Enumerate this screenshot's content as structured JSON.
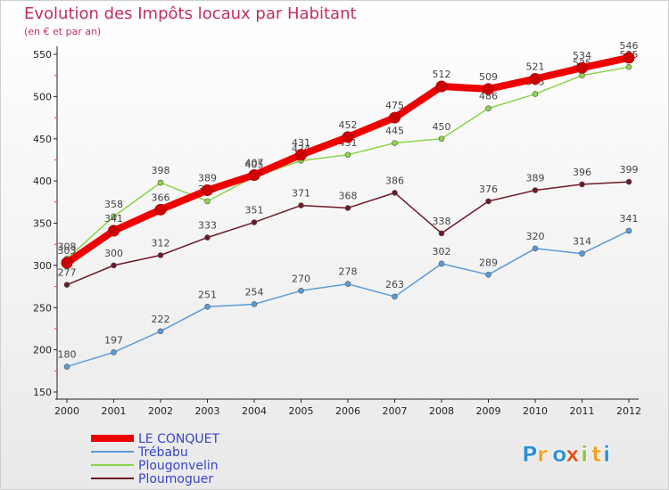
{
  "chart_data": {
    "type": "line",
    "title": "Evolution des Impôts locaux par Habitant",
    "subtitle": "(en € et par an)",
    "xlabel": "",
    "ylabel": "",
    "categories": [
      "2000",
      "2001",
      "2002",
      "2003",
      "2004",
      "2005",
      "2006",
      "2007",
      "2008",
      "2009",
      "2010",
      "2011",
      "2012"
    ],
    "ylim": [
      150,
      550
    ],
    "yticks": [
      150,
      200,
      250,
      300,
      350,
      400,
      450,
      500,
      550
    ],
    "grid": false,
    "legend_position": "bottom-left",
    "series": [
      {
        "name": "Plougonvelin",
        "color": "#8ed44a",
        "values": [
          308,
          358,
          398,
          376,
          405,
          424,
          431,
          445,
          450,
          486,
          503,
          525,
          535
        ]
      },
      {
        "name": "Ploumoguer",
        "color": "#6b1a28",
        "values": [
          277,
          300,
          312,
          333,
          351,
          371,
          368,
          386,
          338,
          376,
          389,
          396,
          399
        ]
      },
      {
        "name": "Trébabu",
        "color": "#5b9bd5",
        "values": [
          180,
          197,
          222,
          251,
          254,
          270,
          278,
          263,
          302,
          289,
          320,
          314,
          341
        ]
      },
      {
        "name": "LE CONQUET",
        "color": "#ee0000",
        "values": [
          303,
          341,
          366,
          389,
          407,
          431,
          452,
          475,
          512,
          509,
          521,
          534,
          546
        ]
      }
    ],
    "legend_order": [
      "LE CONQUET",
      "Trébabu",
      "Plougonvelin",
      "Ploumoguer"
    ]
  },
  "branding": {
    "logo_letters": [
      "P",
      "r",
      "o",
      "x",
      "i",
      "t",
      "i"
    ],
    "logo_colors": [
      "#2d8fd5",
      "#f4a11b",
      "#2d8fd5",
      "#e64b1c",
      "#8dc63f",
      "#f4a11b",
      "#2d8fd5"
    ]
  }
}
